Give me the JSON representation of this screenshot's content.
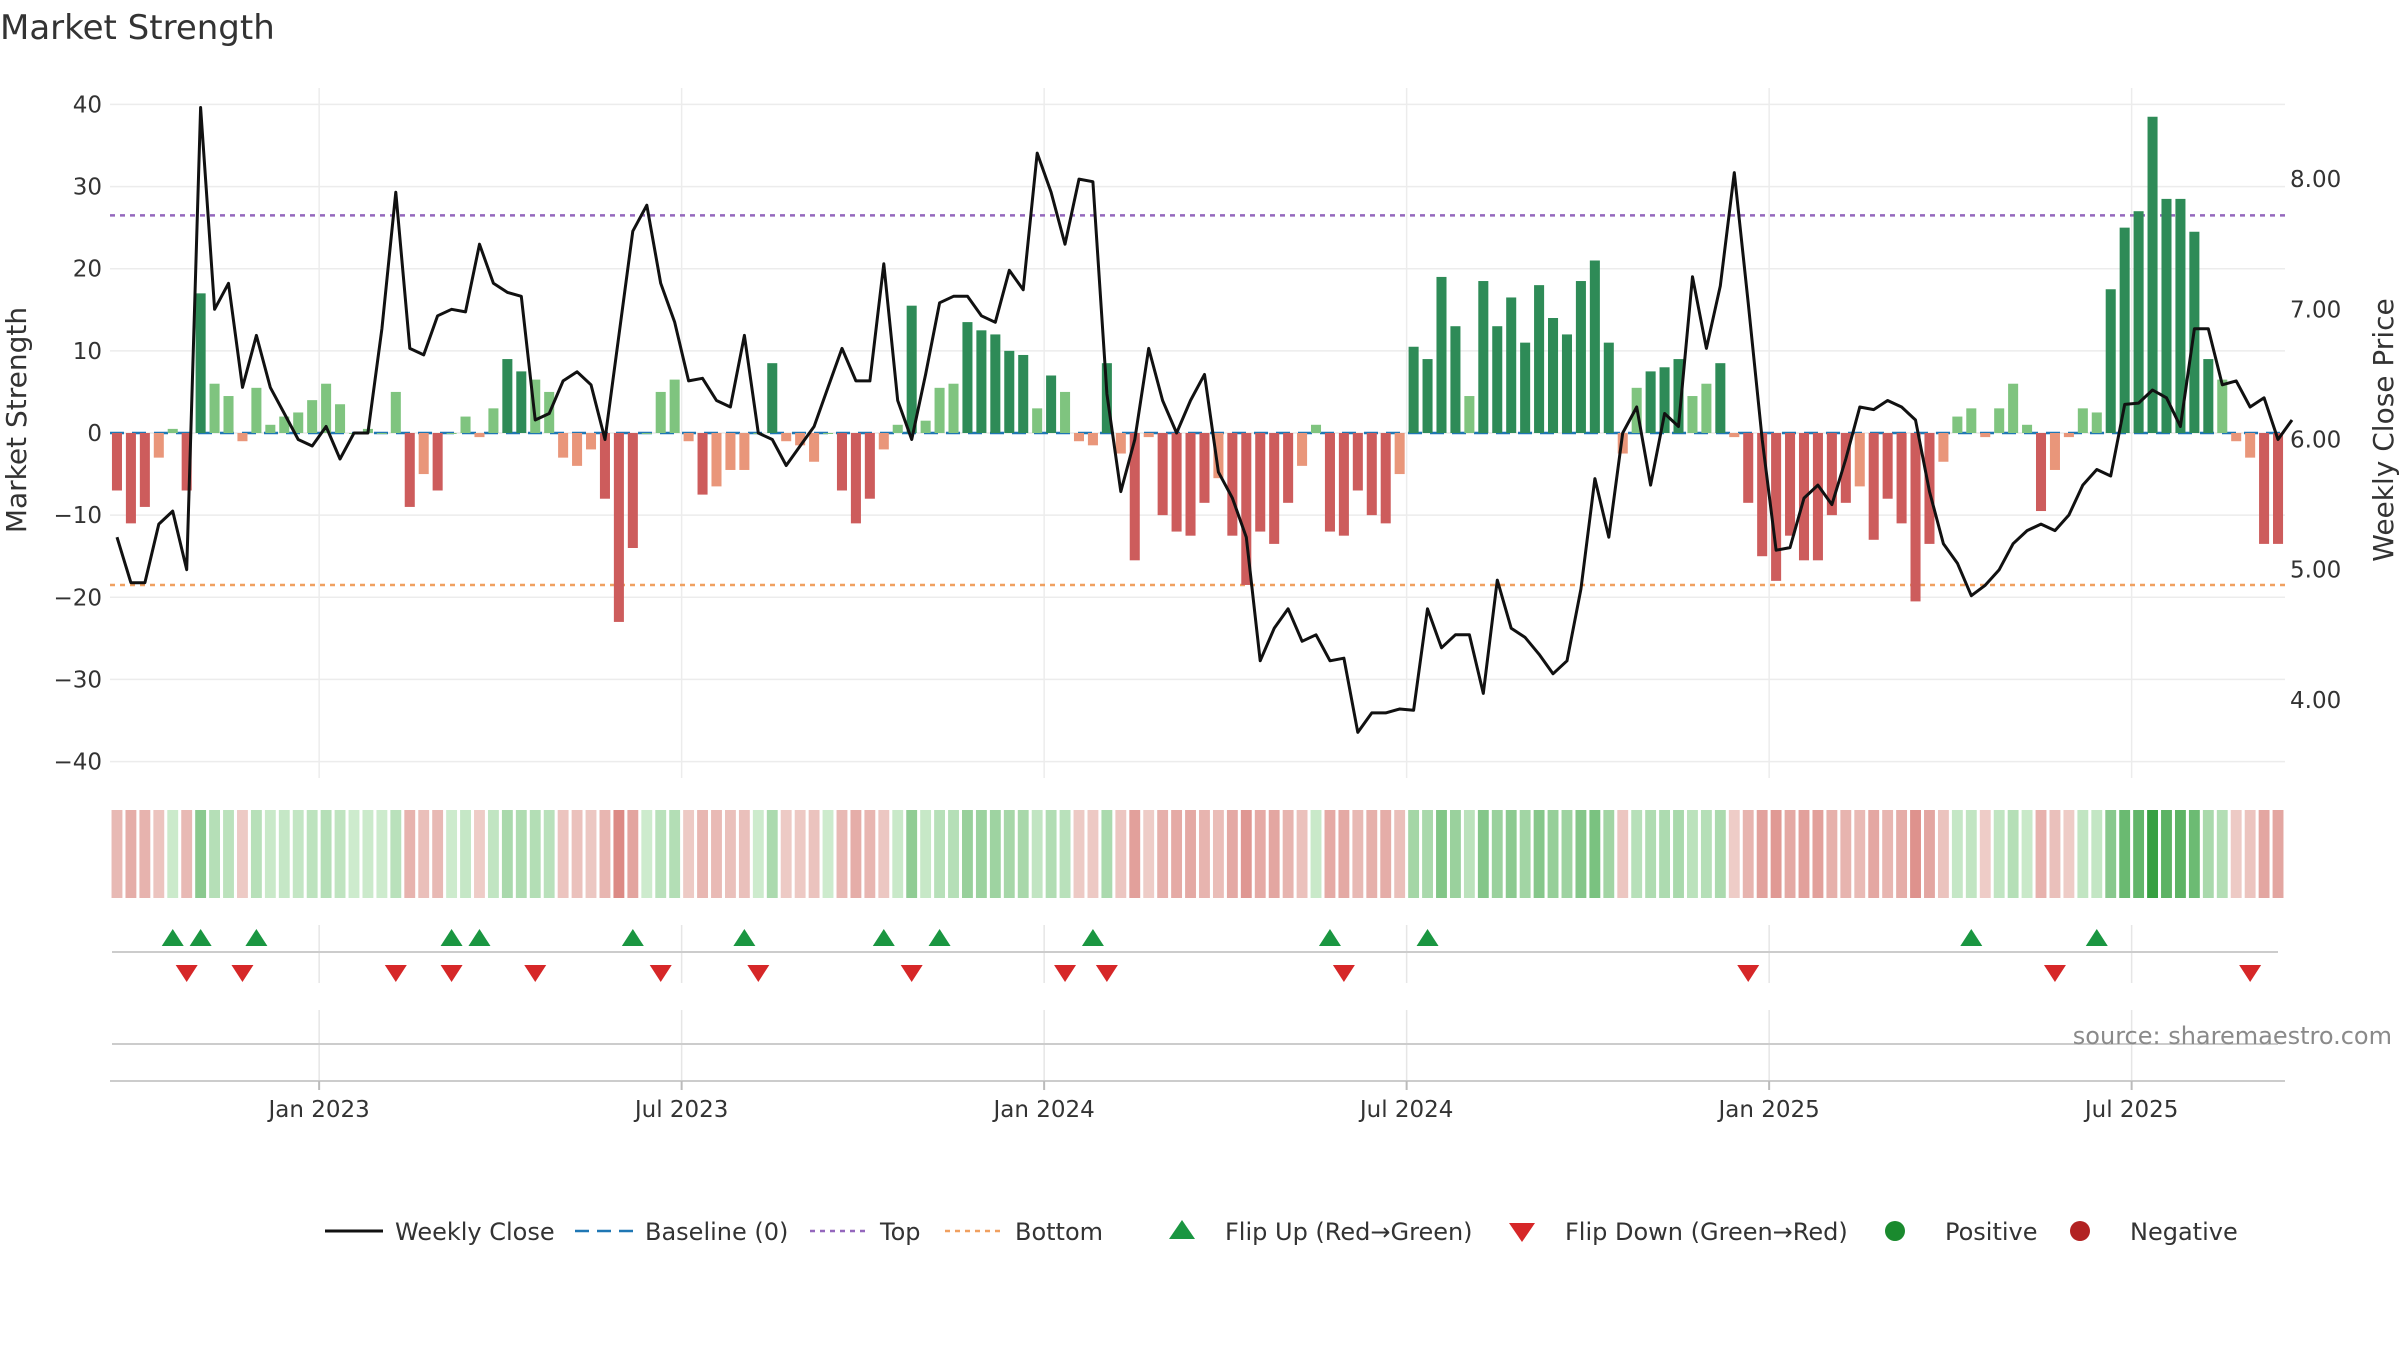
{
  "chart_data": {
    "type": "bar",
    "title": "Market Strength",
    "ylabel_left": "Market Strength",
    "ylabel_right": "Weekly Close Price",
    "left_ylim": [
      -42,
      42
    ],
    "left_yticks": [
      40,
      30,
      20,
      10,
      0,
      -10,
      -20,
      -30,
      -40
    ],
    "left_ytick_labels": [
      "40",
      "30",
      "20",
      "10",
      "0",
      "−10",
      "−20",
      "−30",
      "−40"
    ],
    "right_ylim": [
      3.4,
      8.7
    ],
    "right_yticks": [
      8,
      7,
      6,
      5,
      4
    ],
    "right_ytick_labels": [
      "8.00",
      "7.00",
      "6.00",
      "5.00",
      "4.00"
    ],
    "x_ticks": [
      "Jan 2023",
      "Jul 2023",
      "Jan 2024",
      "Jul 2024",
      "Jan 2025",
      "Jul 2025"
    ],
    "x_tick_weeks": [
      15,
      41,
      67,
      93,
      119,
      145
    ],
    "top_line": 26.5,
    "bottom_line": -18.5,
    "baseline": 0,
    "strength": [
      -7,
      -11,
      -9,
      -3,
      0.5,
      -7,
      17,
      6,
      4.5,
      -1,
      5.5,
      1,
      2,
      2.5,
      4,
      6,
      3.5,
      0,
      0.5,
      0,
      5,
      -9,
      -5,
      -7,
      0,
      2,
      -0.5,
      3,
      9,
      7.5,
      6.5,
      5,
      -3,
      -4,
      -2,
      -8,
      -23,
      -14,
      0,
      5,
      6.5,
      -1,
      -7.5,
      -6.5,
      -4.5,
      -4.5,
      0,
      8.5,
      -1,
      -1.5,
      -3.5,
      0,
      -7,
      -11,
      -8,
      -2,
      1,
      15.5,
      1.5,
      5.5,
      6,
      13.5,
      12.5,
      12,
      10,
      9.5,
      3,
      7,
      5,
      -1,
      -1.5,
      8.5,
      -2.5,
      -15.5,
      -0.5,
      -10,
      -12,
      -12.5,
      -8.5,
      -5.5,
      -12.5,
      -18.5,
      -12,
      -13.5,
      -8.5,
      -4,
      1,
      -12,
      -12.5,
      -7,
      -10,
      -11,
      -5,
      10.5,
      9,
      19,
      13,
      4.5,
      18.5,
      13,
      16.5,
      11,
      18,
      14,
      12,
      18.5,
      21,
      11,
      -2.5,
      5.5,
      7.5,
      8,
      9,
      4.5,
      6,
      8.5,
      -0.5,
      -8.5,
      -15,
      -18,
      -12.5,
      -15.5,
      -15.5,
      -10,
      -8.5,
      -6.5,
      -13,
      -8,
      -11,
      -20.5,
      -13.5,
      -3.5,
      2,
      3,
      -0.5,
      3,
      6,
      1,
      -9.5,
      -4.5,
      -0.5,
      3,
      2.5,
      17.5,
      25,
      27,
      38.5,
      28.5,
      28.5,
      24.5,
      9,
      6.5,
      -1,
      -3,
      -13.5,
      -13.5
    ],
    "close": [
      5.25,
      4.9,
      4.9,
      5.35,
      5.45,
      5.0,
      8.55,
      7.0,
      7.2,
      6.4,
      6.8,
      6.4,
      6.2,
      6.0,
      5.95,
      6.1,
      5.85,
      6.05,
      6.05,
      6.85,
      7.9,
      6.7,
      6.65,
      6.95,
      7.0,
      6.98,
      7.5,
      7.2,
      7.13,
      7.1,
      6.15,
      6.2,
      6.45,
      6.52,
      6.42,
      6.0,
      6.8,
      7.6,
      7.8,
      7.2,
      6.9,
      6.45,
      6.47,
      6.3,
      6.25,
      6.8,
      6.05,
      6.0,
      5.8,
      5.95,
      6.1,
      6.4,
      6.7,
      6.45,
      6.45,
      7.35,
      6.3,
      6.0,
      6.5,
      7.05,
      7.1,
      7.1,
      6.95,
      6.9,
      7.3,
      7.15,
      8.2,
      7.9,
      7.5,
      8.0,
      7.98,
      6.35,
      5.6,
      6.0,
      6.7,
      6.3,
      6.05,
      6.3,
      6.5,
      5.75,
      5.55,
      5.25,
      4.3,
      4.55,
      4.7,
      4.45,
      4.5,
      4.3,
      4.32,
      3.75,
      3.9,
      3.9,
      3.93,
      3.92,
      4.7,
      4.4,
      4.5,
      4.5,
      4.05,
      4.92,
      4.55,
      4.48,
      4.35,
      4.2,
      4.3,
      4.85,
      5.7,
      5.25,
      6.05,
      6.25,
      5.65,
      6.2,
      6.1,
      7.25,
      6.7,
      7.18,
      8.05,
      7.05,
      6.0,
      5.15,
      5.17,
      5.55,
      5.65,
      5.5,
      5.85,
      6.25,
      6.23,
      6.3,
      6.25,
      6.15,
      5.6,
      5.2,
      5.05,
      4.8,
      4.88,
      5.0,
      5.2,
      5.3,
      5.35,
      5.3,
      5.42,
      5.65,
      5.77,
      5.72,
      6.27,
      6.28,
      6.38,
      6.32,
      6.1,
      6.85,
      6.85,
      6.42,
      6.45,
      6.25,
      6.32,
      6.0,
      6.15
    ],
    "flip_up_weeks": [
      4,
      6,
      10,
      24,
      26,
      37,
      45,
      55,
      59,
      70,
      87,
      94,
      133,
      142
    ],
    "flip_down_weeks": [
      5,
      9,
      20,
      24,
      30,
      39,
      46,
      57,
      68,
      71,
      88,
      117,
      139,
      153
    ],
    "series": [
      {
        "name": "Weekly Close",
        "color": "#111111"
      },
      {
        "name": "Baseline (0)",
        "color": "#1f77b4"
      },
      {
        "name": "Top",
        "color": "#9467bd"
      },
      {
        "name": "Bottom",
        "color": "#f0a060"
      },
      {
        "name": "Flip Up (Red→Green)",
        "color": "#1a9641"
      },
      {
        "name": "Flip Down (Green→Red)",
        "color": "#d62728"
      },
      {
        "name": "Positive",
        "color": "#1a8a2e"
      },
      {
        "name": "Negative",
        "color": "#b22222"
      }
    ],
    "grid": true,
    "legend_position": "bottom-center"
  },
  "colors": {
    "pos_strong": "#2e8b57",
    "pos_weak": "#7fc47f",
    "neg_strong": "#cd5c5c",
    "neg_weak": "#e9967a"
  },
  "source": "source: sharemaestro.com"
}
